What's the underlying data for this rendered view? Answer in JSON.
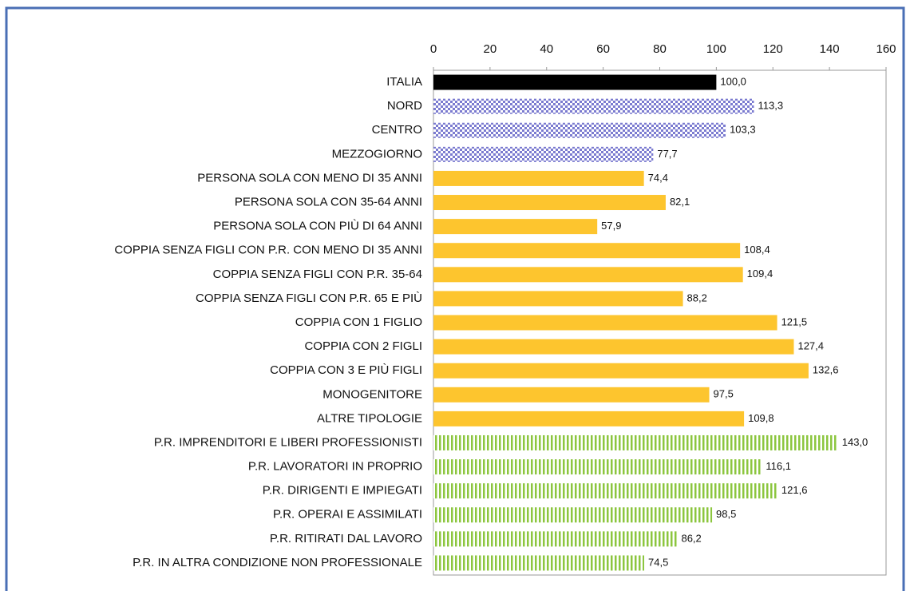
{
  "chart_data": {
    "type": "bar",
    "orientation": "horizontal",
    "categories": [
      "ITALIA",
      "NORD",
      "CENTRO",
      "MEZZOGIORNO",
      "PERSONA SOLA CON MENO DI 35 ANNI",
      "PERSONA SOLA CON 35-64 ANNI",
      "PERSONA SOLA CON PIÙ DI 64 ANNI",
      "COPPIA SENZA FIGLI CON P.R. CON MENO DI 35 ANNI",
      "COPPIA SENZA FIGLI CON P.R. 35-64",
      "COPPIA SENZA FIGLI CON P.R. 65 E PIÙ",
      "COPPIA CON 1 FIGLIO",
      "COPPIA CON 2 FIGLI",
      "COPPIA CON 3 E PIÙ FIGLI",
      "MONOGENITORE",
      "ALTRE TIPOLOGIE",
      "P.R. IMPRENDITORI E LIBERI PROFESSIONISTI",
      "P.R. LAVORATORI IN PROPRIO",
      "P.R. DIRIGENTI E IMPIEGATI",
      "P.R. OPERAI E ASSIMILATI",
      "P.R. RITIRATI DAL LAVORO",
      "P.R. IN ALTRA CONDIZIONE NON PROFESSIONALE"
    ],
    "values": [
      100.0,
      113.3,
      103.3,
      77.7,
      74.4,
      82.1,
      57.9,
      108.4,
      109.4,
      88.2,
      121.5,
      127.4,
      132.6,
      97.5,
      109.8,
      143.0,
      116.1,
      121.6,
      98.5,
      86.2,
      74.5
    ],
    "value_labels": [
      "100,0",
      "113,3",
      "103,3",
      "77,7",
      "74,4",
      "82,1",
      "57,9",
      "108,4",
      "109,4",
      "88,2",
      "121,5",
      "127,4",
      "132,6",
      "97,5",
      "109,8",
      "143,0",
      "116,1",
      "121,6",
      "98,5",
      "86,2",
      "74,5"
    ],
    "colors": [
      "#000000",
      "#7b7bd0",
      "#7b7bd0",
      "#7b7bd0",
      "#fdc52e",
      "#fdc52e",
      "#fdc52e",
      "#fdc52e",
      "#fdc52e",
      "#fdc52e",
      "#fdc52e",
      "#fdc52e",
      "#fdc52e",
      "#fdc52e",
      "#fdc52e",
      "#8cc63f",
      "#8cc63f",
      "#8cc63f",
      "#8cc63f",
      "#8cc63f",
      "#8cc63f"
    ],
    "patterns": [
      "solid",
      "checker",
      "checker",
      "checker",
      "solid",
      "solid",
      "solid",
      "solid",
      "solid",
      "solid",
      "solid",
      "solid",
      "solid",
      "solid",
      "solid",
      "stripes",
      "stripes",
      "stripes",
      "stripes",
      "stripes",
      "stripes"
    ],
    "xlim": [
      0,
      160
    ],
    "xticks": [
      0,
      20,
      40,
      60,
      80,
      100,
      120,
      140,
      160
    ],
    "grid": false
  }
}
